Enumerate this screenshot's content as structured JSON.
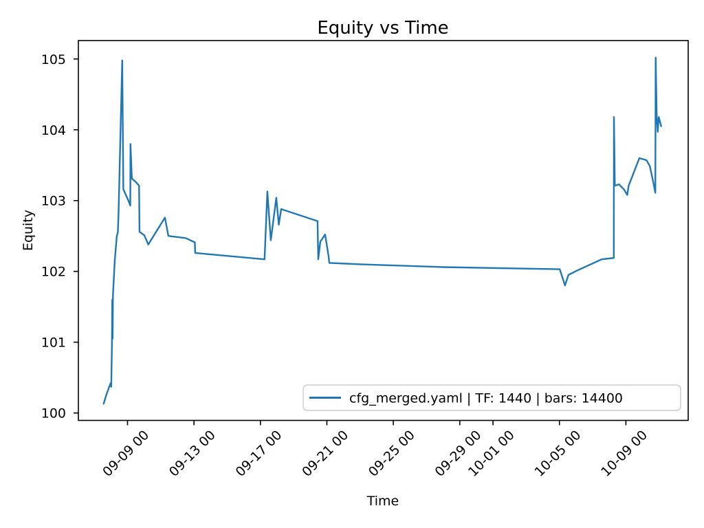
{
  "chart_data": {
    "type": "line",
    "title": "Equity vs Time",
    "xlabel": "Time",
    "ylabel": "Equity",
    "grid": false,
    "legend": {
      "position": "lower right",
      "entries": [
        "cfg_merged.yaml | TF: 1440 | bars: 14400"
      ]
    },
    "colors": {
      "line": "#1f77b4",
      "text": "#000000",
      "spine": "#000000",
      "legend_border": "#cccccc",
      "background": "#ffffff"
    },
    "x_tick_labels": [
      "09-09 00",
      "09-13 00",
      "09-17 00",
      "09-21 00",
      "09-25 00",
      "09-29 00",
      "10-01 00",
      "10-05 00",
      "10-09 00"
    ],
    "x_tick_rotation_deg": 45,
    "y_ticks": [
      100,
      101,
      102,
      103,
      104,
      105
    ],
    "ylim": [
      99.895,
      105.26
    ],
    "xlim": [
      "09-06 01:00",
      "10-12 18:00"
    ],
    "series": [
      {
        "name": "cfg_merged.yaml | TF: 1440 | bars: 14400",
        "points": [
          [
            "09-07 13:30",
            100.13
          ],
          [
            "09-07 17:30",
            100.26
          ],
          [
            "09-07 23:30",
            100.42
          ],
          [
            "09-08 00:30",
            100.37
          ],
          [
            "09-08 01:30",
            100.95
          ],
          [
            "09-08 02:00",
            101.6
          ],
          [
            "09-08 02:30",
            101.05
          ],
          [
            "09-08 03:00",
            101.66
          ],
          [
            "09-08 05:30",
            102.15
          ],
          [
            "09-08 08:30",
            102.5
          ],
          [
            "09-08 10:00",
            102.55
          ],
          [
            "09-08 11:00",
            102.81
          ],
          [
            "09-08 16:20",
            104.98
          ],
          [
            "09-08 18:00",
            103.16
          ],
          [
            "09-09 01:15",
            103.0
          ],
          [
            "09-09 04:00",
            102.93
          ],
          [
            "09-09 04:20",
            103.8
          ],
          [
            "09-09 06:15",
            103.31
          ],
          [
            "09-09 11:15",
            103.27
          ],
          [
            "09-09 16:45",
            103.21
          ],
          [
            "09-09 17:15",
            102.56
          ],
          [
            "09-10 00:15",
            102.51
          ],
          [
            "09-10 06:00",
            102.38
          ],
          [
            "09-11 06:00",
            102.76
          ],
          [
            "09-11 11:00",
            102.5
          ],
          [
            "09-12 12:00",
            102.47
          ],
          [
            "09-13 01:15",
            102.41
          ],
          [
            "09-13 01:45",
            102.26
          ],
          [
            "09-17 06:00",
            102.17
          ],
          [
            "09-17 10:00",
            103.13
          ],
          [
            "09-17 15:00",
            102.44
          ],
          [
            "09-17 23:00",
            103.04
          ],
          [
            "09-18 02:30",
            102.66
          ],
          [
            "09-18 06:00",
            102.88
          ],
          [
            "09-20 10:30",
            102.71
          ],
          [
            "09-20 11:30",
            102.17
          ],
          [
            "09-20 14:30",
            102.42
          ],
          [
            "09-20 21:30",
            102.52
          ],
          [
            "09-21 02:30",
            102.21
          ],
          [
            "09-21 03:30",
            102.12
          ],
          [
            "09-23 00:00",
            102.1
          ],
          [
            "09-28 00:00",
            102.06
          ],
          [
            "10-05 00:30",
            102.03
          ],
          [
            "10-05 08:00",
            101.8
          ],
          [
            "10-05 13:00",
            101.95
          ],
          [
            "10-05 23:00",
            102.0
          ],
          [
            "10-07 13:00",
            102.17
          ],
          [
            "10-08 06:30",
            102.19
          ],
          [
            "10-08 06:45",
            104.18
          ],
          [
            "10-08 08:00",
            103.21
          ],
          [
            "10-08 14:00",
            103.23
          ],
          [
            "10-08 21:00",
            103.16
          ],
          [
            "10-09 02:00",
            103.08
          ],
          [
            "10-09 04:00",
            103.21
          ],
          [
            "10-09 19:30",
            103.6
          ],
          [
            "10-10 05:45",
            103.57
          ],
          [
            "10-10 10:30",
            103.49
          ],
          [
            "10-10 14:30",
            103.31
          ],
          [
            "10-10 18:30",
            103.11
          ],
          [
            "10-10 19:00",
            105.02
          ],
          [
            "10-10 20:30",
            104.2
          ],
          [
            "10-10 22:00",
            103.97
          ],
          [
            "10-10 23:30",
            104.18
          ],
          [
            "10-11 03:00",
            104.05
          ]
        ]
      }
    ]
  }
}
